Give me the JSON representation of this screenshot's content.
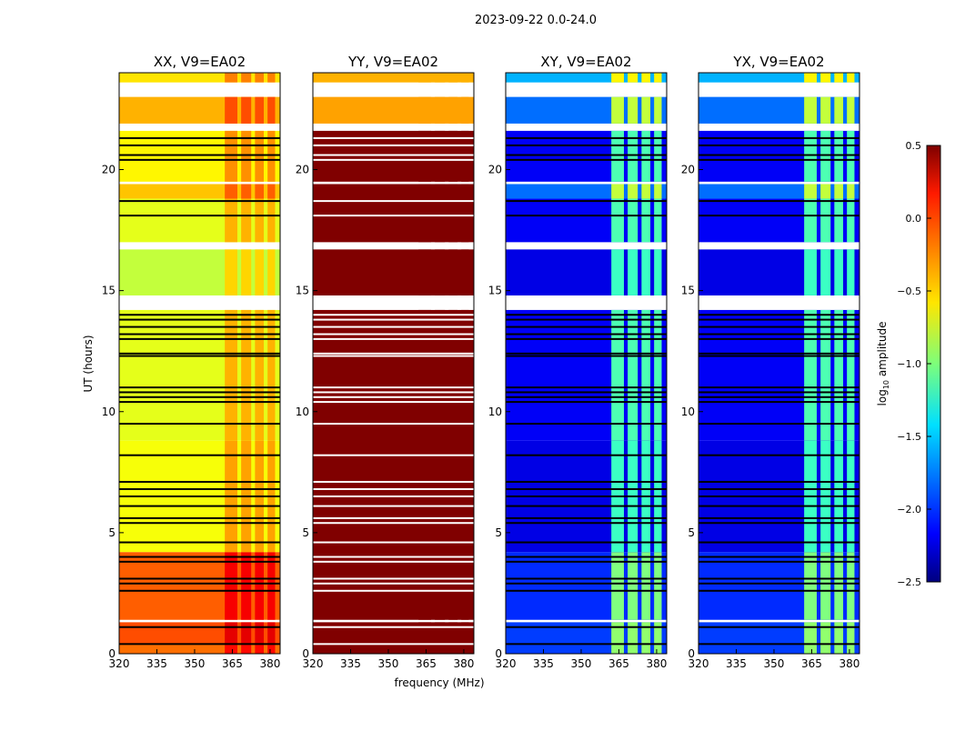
{
  "chart_data": {
    "type": "heatmap",
    "title": "2023-09-22 0.0-24.0",
    "xlabel": "frequency (MHz)",
    "ylabel": "UT (hours)",
    "xlim": [
      320,
      384
    ],
    "ylim": [
      0,
      24
    ],
    "xticks": [
      "320",
      "335",
      "350",
      "365",
      "380"
    ],
    "yticks": [
      "0",
      "5",
      "10",
      "15",
      "20"
    ],
    "colorbar": {
      "label": "log10 amplitude",
      "label_main": "log",
      "label_sub": "10",
      "label_rest": " amplitude",
      "range": [
        -2.5,
        0.5
      ],
      "ticks": [
        "0.5",
        "0.0",
        "−0.5",
        "−1.0",
        "−1.5",
        "−2.0",
        "−2.5"
      ],
      "tick_values": [
        0.5,
        0.0,
        -0.5,
        -1.0,
        -1.5,
        -2.0,
        -2.5
      ],
      "colormap": "jet"
    },
    "flagged_hours": [
      [
        1.3,
        1.4
      ],
      [
        14.2,
        14.8
      ],
      [
        16.7,
        17.0
      ],
      [
        19.4,
        19.5
      ],
      [
        21.6,
        21.9
      ],
      [
        23.0,
        23.6
      ]
    ],
    "flagged_lines_hours": [
      0.4,
      1.1,
      2.6,
      2.9,
      3.1,
      3.8,
      4.0,
      4.6,
      5.4,
      5.6,
      6.1,
      6.5,
      6.8,
      7.1,
      8.2,
      9.5,
      10.4,
      10.6,
      10.8,
      11.0,
      12.3,
      12.4,
      13.0,
      13.2,
      13.5,
      13.8,
      14.0,
      18.1,
      18.7,
      20.4,
      20.6,
      21.0,
      21.3
    ],
    "rfi_channels_mhz": [
      [
        362,
        367
      ],
      [
        368.5,
        372.5
      ],
      [
        374,
        377.5
      ],
      [
        379,
        382
      ]
    ],
    "panels": [
      {
        "title": "XX, V9=EA02",
        "rfi_offset": 0.3,
        "segments": [
          [
            0,
            0.4,
            -0.2
          ],
          [
            0.4,
            1.3,
            -0.1
          ],
          [
            1.4,
            4.2,
            -0.15
          ],
          [
            4.2,
            8.8,
            -0.65
          ],
          [
            8.8,
            14.2,
            -0.7
          ],
          [
            14.8,
            16.7,
            -0.8
          ],
          [
            17.0,
            18.8,
            -0.7
          ],
          [
            18.8,
            19.4,
            -0.45
          ],
          [
            19.5,
            21.6,
            -0.6
          ],
          [
            21.9,
            23.0,
            -0.4
          ],
          [
            23.6,
            24,
            -0.55
          ]
        ]
      },
      {
        "title": "YY, V9=EA02",
        "rfi_offset": 0.0,
        "segments": [
          [
            0,
            1.3,
            0.5
          ],
          [
            1.4,
            14.2,
            0.5
          ],
          [
            14.8,
            16.7,
            0.5
          ],
          [
            17.0,
            19.4,
            0.5
          ],
          [
            19.5,
            21.6,
            0.5
          ],
          [
            21.9,
            23.0,
            -0.35
          ],
          [
            23.6,
            24,
            -0.4
          ]
        ]
      },
      {
        "title": "XY, V9=EA02",
        "rfi_offset": 1.0,
        "segments": [
          [
            0,
            1.3,
            -1.95
          ],
          [
            1.4,
            4.2,
            -2.0
          ],
          [
            4.2,
            8.8,
            -2.2
          ],
          [
            8.8,
            14.2,
            -2.15
          ],
          [
            14.8,
            16.7,
            -2.2
          ],
          [
            17.0,
            18.8,
            -2.15
          ],
          [
            18.8,
            19.4,
            -1.8
          ],
          [
            19.5,
            21.6,
            -2.15
          ],
          [
            21.9,
            23.0,
            -1.8
          ],
          [
            23.6,
            24,
            -1.6
          ]
        ]
      },
      {
        "title": "YX, V9=EA02",
        "rfi_offset": 1.0,
        "segments": [
          [
            0,
            1.3,
            -1.95
          ],
          [
            1.4,
            4.2,
            -2.0
          ],
          [
            4.2,
            8.8,
            -2.2
          ],
          [
            8.8,
            14.2,
            -2.15
          ],
          [
            14.8,
            16.7,
            -2.2
          ],
          [
            17.0,
            18.8,
            -2.15
          ],
          [
            18.8,
            19.4,
            -1.8
          ],
          [
            19.5,
            21.6,
            -2.15
          ],
          [
            21.9,
            23.0,
            -1.8
          ],
          [
            23.6,
            24,
            -1.6
          ]
        ]
      }
    ]
  }
}
